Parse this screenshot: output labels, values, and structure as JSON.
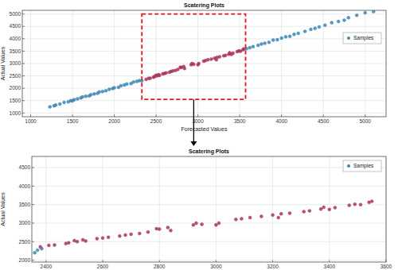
{
  "chart_data": [
    {
      "type": "scatter",
      "title": "Scatering Plots",
      "x_label": "Forecasted Values",
      "y_label": "Actual Values",
      "xlim": [
        900,
        5250
      ],
      "ylim": [
        850,
        5150
      ],
      "xticks": [
        1000,
        1500,
        2000,
        2500,
        3000,
        3500,
        4000,
        4500,
        5000
      ],
      "yticks": [
        1000,
        1500,
        2000,
        2500,
        3000,
        3500,
        4000,
        4500,
        5000
      ],
      "grid": true,
      "legend": "northeast",
      "marker": "circle",
      "zoom_box": {
        "x": [
          2330,
          3570
        ],
        "y": [
          1550,
          5000
        ]
      },
      "series": [
        {
          "name": "Samples",
          "x": [
            1230,
            1280,
            1300,
            1350,
            1400,
            1450,
            1480,
            1500,
            1520,
            1560,
            1600,
            1620,
            1660,
            1700,
            1720,
            1760,
            1800,
            1820,
            1860,
            1900,
            1940,
            1980,
            2000,
            2050,
            2080,
            2120,
            2150,
            2200,
            2230,
            2270,
            2300,
            2330,
            2380,
            2410,
            2430,
            2470,
            2480,
            2500,
            2510,
            2530,
            2540,
            2580,
            2600,
            2620,
            2660,
            2680,
            2700,
            2730,
            2760,
            2790,
            2800,
            2830,
            2840,
            2920,
            2930,
            2950,
            3000,
            3010,
            3070,
            3090,
            3120,
            3160,
            3200,
            3220,
            3230,
            3260,
            3310,
            3330,
            3370,
            3380,
            3400,
            3420,
            3470,
            3490,
            3510,
            3540,
            3550,
            3580,
            3620,
            3660,
            3720,
            3760,
            3800,
            3850,
            3900,
            3950,
            4000,
            4050,
            4100,
            4150,
            4200,
            4280,
            4350,
            4400,
            4450,
            4520,
            4600,
            4680,
            4750,
            4800,
            4900,
            5000,
            5100
          ],
          "values": [
            1250,
            1290,
            1320,
            1360,
            1430,
            1450,
            1500,
            1490,
            1540,
            1570,
            1610,
            1650,
            1680,
            1690,
            1740,
            1770,
            1800,
            1850,
            1870,
            1900,
            1960,
            1990,
            2020,
            2040,
            2100,
            2130,
            2170,
            2190,
            2250,
            2280,
            2310,
            2300,
            2360,
            2400,
            2410,
            2450,
            2470,
            2530,
            2500,
            2550,
            2520,
            2580,
            2600,
            2620,
            2650,
            2680,
            2700,
            2720,
            2760,
            2850,
            2840,
            2880,
            2800,
            2950,
            3000,
            2970,
            2950,
            3000,
            3100,
            3120,
            3150,
            3180,
            3220,
            3150,
            3250,
            3270,
            3310,
            3330,
            3380,
            3430,
            3370,
            3420,
            3480,
            3510,
            3500,
            3560,
            3590,
            3600,
            3640,
            3680,
            3740,
            3790,
            3820,
            3860,
            3950,
            3960,
            4030,
            4080,
            4100,
            4180,
            4220,
            4300,
            4380,
            4420,
            4480,
            4550,
            4650,
            4700,
            4750,
            4850,
            4950,
            5050,
            5100
          ],
          "colors": [
            "#3a86b4",
            "#3a86b4",
            "#3a86b4",
            "#3a86b4",
            "#3a86b4",
            "#3a86b4",
            "#3a86b4",
            "#3a86b4",
            "#3a86b4",
            "#3a86b4",
            "#3a86b4",
            "#3a86b4",
            "#3a86b4",
            "#3a86b4",
            "#3a86b4",
            "#3a86b4",
            "#3a86b4",
            "#3a86b4",
            "#3a86b4",
            "#3a86b4",
            "#3a86b4",
            "#3a86b4",
            "#3a86b4",
            "#3a86b4",
            "#3a86b4",
            "#3a86b4",
            "#3a86b4",
            "#3a86b4",
            "#3a86b4",
            "#3a86b4",
            "#3a86b4",
            "#3a86b4",
            "#a8325e",
            "#a8325e",
            "#a8325e",
            "#a8325e",
            "#a8325e",
            "#a8325e",
            "#a8325e",
            "#a8325e",
            "#a8325e",
            "#a8325e",
            "#a8325e",
            "#a8325e",
            "#a8325e",
            "#a8325e",
            "#a8325e",
            "#a8325e",
            "#a8325e",
            "#a8325e",
            "#a8325e",
            "#a8325e",
            "#a8325e",
            "#a8325e",
            "#a8325e",
            "#a8325e",
            "#a8325e",
            "#a8325e",
            "#a8325e",
            "#a8325e",
            "#a8325e",
            "#a8325e",
            "#a8325e",
            "#a8325e",
            "#a8325e",
            "#a8325e",
            "#a8325e",
            "#a8325e",
            "#a8325e",
            "#a8325e",
            "#a8325e",
            "#a8325e",
            "#a8325e",
            "#a8325e",
            "#a8325e",
            "#a8325e",
            "#a8325e",
            "#3a86b4",
            "#3a86b4",
            "#3a86b4",
            "#3a86b4",
            "#3a86b4",
            "#3a86b4",
            "#3a86b4",
            "#3a86b4",
            "#3a86b4",
            "#3a86b4",
            "#3a86b4",
            "#3a86b4",
            "#3a86b4",
            "#3a86b4",
            "#3a86b4",
            "#3a86b4",
            "#3a86b4",
            "#3a86b4",
            "#3a86b4",
            "#3a86b4",
            "#3a86b4",
            "#3a86b4",
            "#3a86b4",
            "#3a86b4",
            "#3a86b4",
            "#3a86b4"
          ]
        }
      ]
    },
    {
      "type": "scatter",
      "title": "Scatering Plots",
      "y_label": "Actual Values",
      "xlim": [
        2350,
        3600
      ],
      "ylim": [
        1950,
        4800
      ],
      "xticks": [
        2400,
        2600,
        2800,
        3000,
        3200,
        3400,
        3600
      ],
      "yticks": [
        2000,
        2500,
        3000,
        3500,
        4000,
        4500
      ],
      "grid": true,
      "legend": "northeast",
      "marker": "circle",
      "series": [
        {
          "name": "Samples",
          "x": [
            2360,
            2370,
            2385,
            2380,
            2410,
            2430,
            2470,
            2480,
            2500,
            2510,
            2530,
            2540,
            2580,
            2600,
            2620,
            2660,
            2680,
            2700,
            2730,
            2760,
            2790,
            2800,
            2830,
            2840,
            2920,
            2930,
            2950,
            3000,
            3010,
            3070,
            3090,
            3120,
            3160,
            3200,
            3220,
            3230,
            3260,
            3310,
            3330,
            3370,
            3380,
            3400,
            3420,
            3470,
            3490,
            3510,
            3540,
            3550
          ],
          "values": [
            2200,
            2270,
            2310,
            2360,
            2400,
            2410,
            2450,
            2470,
            2530,
            2500,
            2550,
            2520,
            2580,
            2600,
            2620,
            2650,
            2680,
            2700,
            2720,
            2760,
            2850,
            2840,
            2880,
            2800,
            2950,
            3000,
            2970,
            2950,
            3000,
            3100,
            3120,
            3150,
            3180,
            3220,
            3150,
            3250,
            3270,
            3310,
            3330,
            3380,
            3430,
            3370,
            3420,
            3480,
            3510,
            3500,
            3560,
            3590
          ],
          "colors": [
            "#3a86b4",
            "#3a86b4",
            "#3a86b4",
            "#a8325e",
            "#a8325e",
            "#a8325e",
            "#a8325e",
            "#a8325e",
            "#a8325e",
            "#a8325e",
            "#a8325e",
            "#a8325e",
            "#a8325e",
            "#a8325e",
            "#a8325e",
            "#a8325e",
            "#a8325e",
            "#a8325e",
            "#a8325e",
            "#a8325e",
            "#a8325e",
            "#a8325e",
            "#a8325e",
            "#a8325e",
            "#a8325e",
            "#a8325e",
            "#a8325e",
            "#a8325e",
            "#a8325e",
            "#a8325e",
            "#a8325e",
            "#a8325e",
            "#a8325e",
            "#a8325e",
            "#a8325e",
            "#a8325e",
            "#a8325e",
            "#a8325e",
            "#a8325e",
            "#a8325e",
            "#a8325e",
            "#a8325e",
            "#a8325e",
            "#a8325e",
            "#a8325e",
            "#a8325e",
            "#a8325e",
            "#a8325e"
          ]
        }
      ]
    }
  ]
}
